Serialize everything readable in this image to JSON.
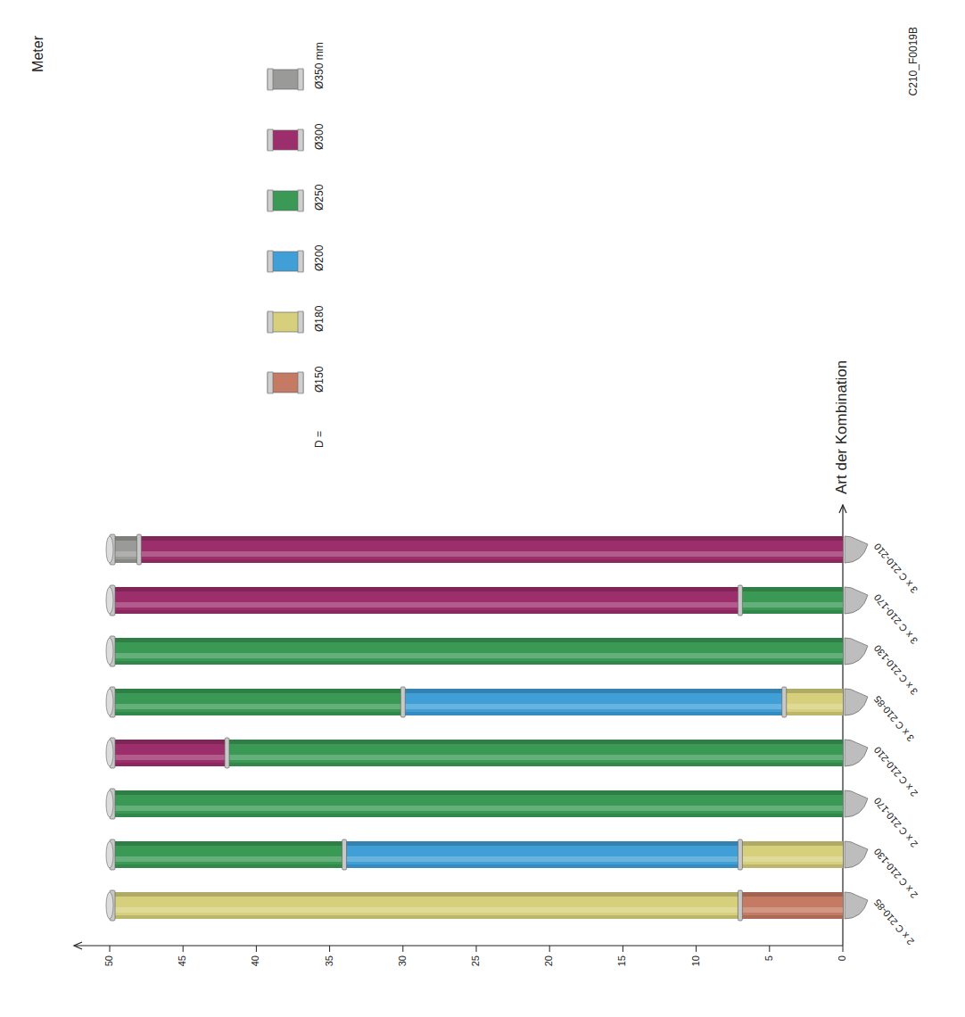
{
  "chart_data": {
    "type": "bar",
    "orientation": "horizontal",
    "stacked": true,
    "grid": false,
    "x_label": "Art der Kombination",
    "y_label": "Meter",
    "legend_title": "D =",
    "annotations": [
      "C210_F0019B"
    ],
    "categories": [
      "2 x C 210-85",
      "2 x C 210-130",
      "2 x C 210-170",
      "2 x C 210-210",
      "3 x C 210-85",
      "3 x C 210-130",
      "3 x C 210-170",
      "3 x C 210-210"
    ],
    "ylim": [
      0,
      50
    ],
    "yticks": [
      0,
      5,
      10,
      15,
      20,
      25,
      30,
      35,
      40,
      45,
      50
    ],
    "series": [
      {
        "name": "Ø150",
        "color": "#c47a63",
        "values": [
          7,
          0,
          0,
          0,
          0,
          0,
          0,
          0
        ]
      },
      {
        "name": "Ø180",
        "color": "#d6d07c",
        "values": [
          43,
          7,
          0,
          0,
          4,
          0,
          0,
          0
        ]
      },
      {
        "name": "Ø200",
        "color": "#3f9fd6",
        "values": [
          0,
          27,
          0,
          0,
          26,
          0,
          0,
          0
        ]
      },
      {
        "name": "Ø250",
        "color": "#3a9a55",
        "values": [
          0,
          16,
          50,
          42,
          20,
          50,
          7,
          0
        ]
      },
      {
        "name": "Ø300",
        "color": "#9c2f6b",
        "values": [
          0,
          0,
          0,
          8,
          0,
          0,
          43,
          48
        ]
      },
      {
        "name": "Ø350 mm",
        "color": "#9a9a98",
        "values": [
          0,
          0,
          0,
          0,
          0,
          0,
          0,
          2
        ]
      }
    ]
  }
}
